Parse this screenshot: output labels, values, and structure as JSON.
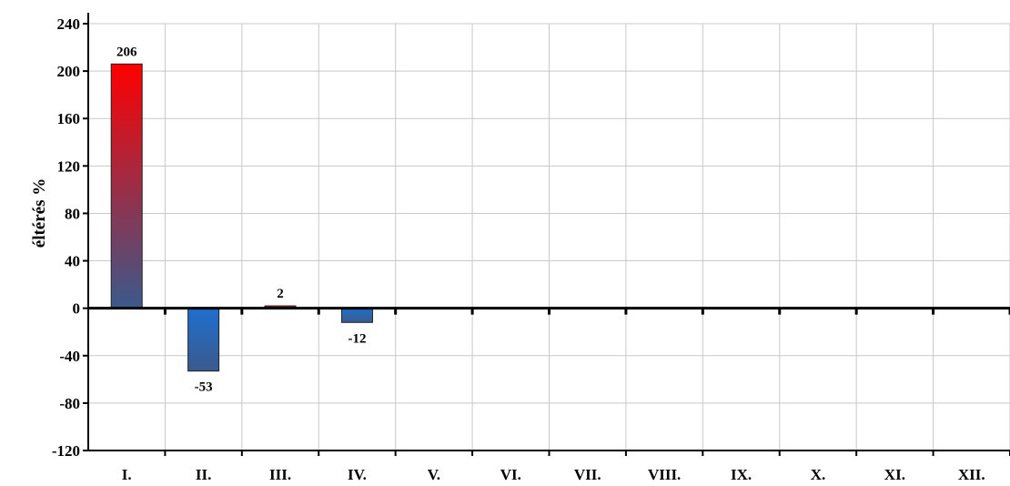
{
  "chart_data": {
    "type": "bar",
    "title": "",
    "xlabel": "",
    "ylabel": "éltérés %",
    "categories": [
      "I.",
      "II.",
      "III.",
      "IV.",
      "V.",
      "VI.",
      "VII.",
      "VIII.",
      "IX.",
      "X.",
      "XI.",
      "XII."
    ],
    "values": [
      206,
      -53,
      2,
      -12,
      0,
      0,
      0,
      0,
      0,
      0,
      0,
      0
    ],
    "data_labels": [
      "206",
      "-53",
      "2",
      "-12",
      "",
      "",
      "",
      "",
      "",
      "",
      "",
      ""
    ],
    "ylim": [
      -120,
      240
    ],
    "yticks": [
      -120,
      -80,
      -40,
      0,
      40,
      80,
      120,
      160,
      200,
      240
    ],
    "ytick_labels": [
      "-120",
      "-80",
      "-40",
      "0",
      "40",
      "80",
      "120",
      "160",
      "200",
      "240"
    ],
    "grid": true,
    "legend": "none",
    "colors": {
      "positive_top": "#ff0000",
      "positive_bottom": "#3a5a8c",
      "negative_top": "#1e6fd0",
      "negative_bottom": "#3a5a8c",
      "grid": "#c8c8c8",
      "axis": "#000000"
    }
  }
}
